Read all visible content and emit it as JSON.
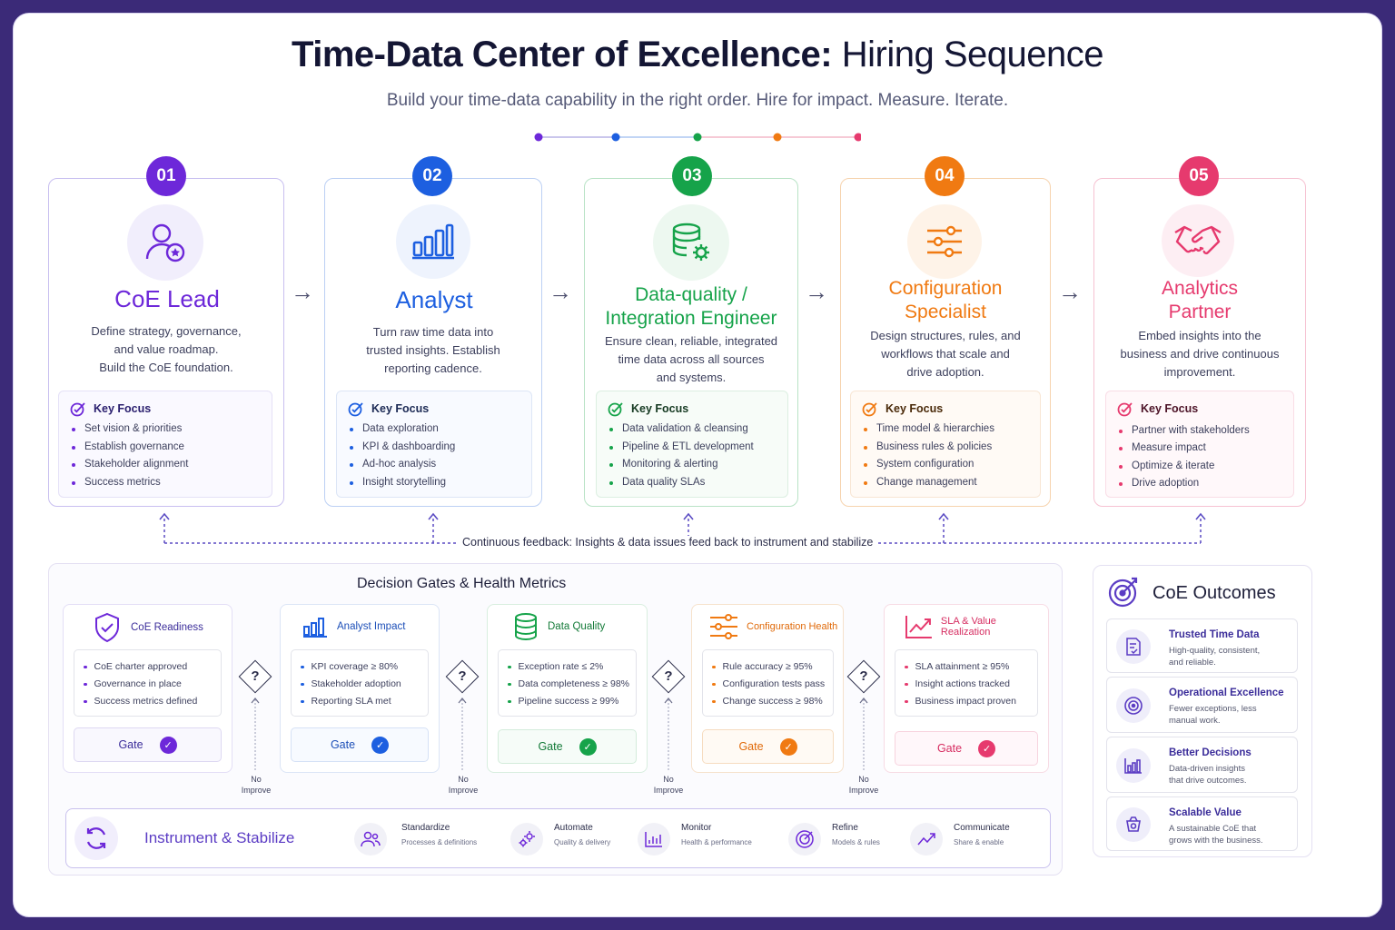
{
  "title": {
    "main": "Time-Data Center of Excellence:",
    "light": "Hiring Sequence"
  },
  "subtitle": "Build your time-data capability in the right order.  Hire for impact. Measure. Iterate.",
  "colors": {
    "purple": "#6d28d9",
    "blue": "#1d5fe0",
    "green": "#16a34a",
    "orange": "#f07a12",
    "pink": "#e63a6e"
  },
  "roles": [
    {
      "num": "01",
      "title": "CoE Lead",
      "desc": [
        "Define strategy, governance,",
        "and value roadmap.",
        "Build the CoE foundation."
      ],
      "focus_label": "Key Focus",
      "focus": [
        "Set vision & priorities",
        "Establish governance",
        "Stakeholder alignment",
        "Success metrics"
      ],
      "icon": "user-star-icon"
    },
    {
      "num": "02",
      "title": "Analyst",
      "desc": [
        "Turn raw time data into",
        "trusted insights. Establish",
        "reporting cadence."
      ],
      "focus_label": "Key Focus",
      "focus": [
        "Data exploration",
        "KPI & dashboarding",
        "Ad-hoc analysis",
        "Insight storytelling"
      ],
      "icon": "bar-chart-icon"
    },
    {
      "num": "03",
      "title": [
        "Data-quality /",
        "Integration Engineer"
      ],
      "desc": [
        "Ensure clean, reliable, integrated",
        "time data across all sources",
        "and systems."
      ],
      "focus_label": "Key Focus",
      "focus": [
        "Data validation & cleansing",
        "Pipeline & ETL development",
        "Monitoring & alerting",
        "Data quality SLAs"
      ],
      "icon": "database-gear-icon"
    },
    {
      "num": "04",
      "title": [
        "Configuration",
        "Specialist"
      ],
      "desc": [
        "Design structures, rules, and",
        "workflows that scale and",
        "drive adoption."
      ],
      "focus_label": "Key Focus",
      "focus": [
        "Time model & hierarchies",
        "Business rules & policies",
        "System configuration",
        "Change management"
      ],
      "icon": "sliders-icon"
    },
    {
      "num": "05",
      "title": [
        "Analytics",
        "Partner"
      ],
      "desc": [
        "Embed insights into the",
        "business and drive continuous",
        "improvement."
      ],
      "focus_label": "Key Focus",
      "focus": [
        "Partner with stakeholders",
        "Measure impact",
        "Optimize & iterate",
        "Drive adoption"
      ],
      "icon": "handshake-icon"
    }
  ],
  "feedback": "Continuous feedback: Insights & data issues feed back to instrument and stabilize",
  "gates": {
    "title": "Decision Gates & Health Metrics",
    "gate_label": "Gate",
    "no_improve": [
      "No",
      "Improve"
    ],
    "items": [
      {
        "title": "CoE Readiness",
        "metrics": [
          "CoE charter approved",
          "Governance in place",
          "Success metrics defined"
        ],
        "icon": "shield-check-icon"
      },
      {
        "title": "Analyst Impact",
        "metrics": [
          "KPI coverage ≥ 80%",
          "Stakeholder adoption",
          "Reporting SLA met"
        ],
        "icon": "bar-chart-icon"
      },
      {
        "title": "Data Quality",
        "metrics": [
          "Exception rate ≤ 2%",
          "Data completeness ≥ 98%",
          "Pipeline success ≥ 99%"
        ],
        "icon": "database-icon"
      },
      {
        "title": "Configuration Health",
        "metrics": [
          "Rule accuracy ≥ 95%",
          "Configuration tests pass",
          "Change success ≥ 98%"
        ],
        "icon": "sliders-icon"
      },
      {
        "title": "SLA & Value Realization",
        "metrics": [
          "SLA attainment ≥ 95%",
          "Insight actions tracked",
          "Business impact proven"
        ],
        "icon": "trend-up-icon"
      }
    ]
  },
  "outcomes": {
    "title": "CoE Outcomes",
    "items": [
      {
        "title": "Trusted Time Data",
        "desc": [
          "High-quality, consistent,",
          "and reliable."
        ],
        "icon": "document-check-icon"
      },
      {
        "title": "Operational Excellence",
        "desc": [
          "Fewer exceptions, less",
          "manual work."
        ],
        "icon": "target-icon"
      },
      {
        "title": "Better Decisions",
        "desc": [
          "Data-driven insights",
          "that drive outcomes."
        ],
        "icon": "chart-icon"
      },
      {
        "title": "Scalable Value",
        "desc": [
          "A sustainable CoE that",
          "grows with the business."
        ],
        "icon": "value-icon"
      }
    ]
  },
  "stabilize": {
    "title": "Instrument & Stabilize",
    "steps": [
      {
        "title": "Standardize",
        "desc": "Processes & definitions",
        "icon": "people-icon"
      },
      {
        "title": "Automate",
        "desc": "Quality & delivery",
        "icon": "gears-icon"
      },
      {
        "title": "Monitor",
        "desc": "Health & performance",
        "icon": "monitor-icon"
      },
      {
        "title": "Refine",
        "desc": "Models & rules",
        "icon": "refine-icon"
      },
      {
        "title": "Communicate",
        "desc": "Share & enable",
        "icon": "trend-icon"
      }
    ]
  }
}
